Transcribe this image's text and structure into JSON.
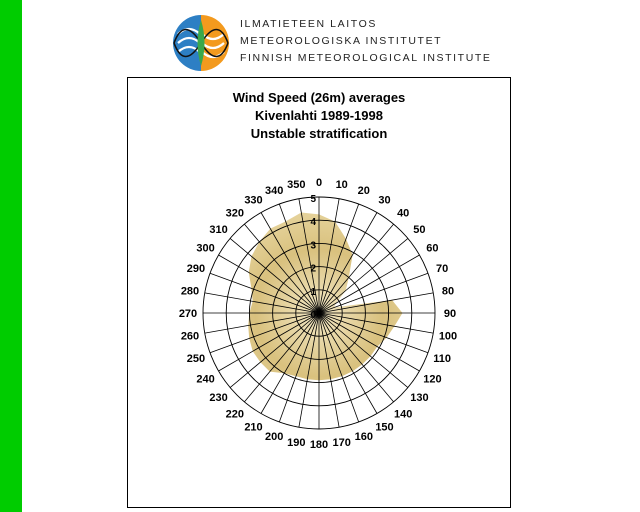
{
  "logo": {
    "line1": "ILMATIETEEN LAITOS",
    "line2": "METEOROLOGISKA INSTITUTET",
    "line3": "FINNISH METEOROLOGICAL INSTITUTE"
  },
  "colors": {
    "side_bar": "#00cc00",
    "fill": "#d9c17e",
    "grid": "#000000"
  },
  "chart_data": {
    "type": "radar",
    "title": [
      "Wind Speed (26m) averages",
      "Kivenlahti 1989-1998",
      "Unstable stratification"
    ],
    "direction_labels": [
      "0",
      "10",
      "20",
      "30",
      "40",
      "50",
      "60",
      "70",
      "80",
      "90",
      "100",
      "110",
      "120",
      "130",
      "140",
      "150",
      "160",
      "170",
      "180",
      "190",
      "200",
      "210",
      "220",
      "230",
      "240",
      "250",
      "260",
      "270",
      "280",
      "290",
      "300",
      "310",
      "320",
      "330",
      "340",
      "350"
    ],
    "radial_ticks": [
      0,
      1,
      2,
      3,
      4,
      5
    ],
    "rmax": 5,
    "values": [
      4.25,
      4.0,
      3.4,
      2.9,
      2.0,
      1.5,
      0.85,
      0.7,
      3.2,
      3.6,
      3.3,
      3.1,
      2.9,
      2.9,
      2.9,
      2.9,
      2.9,
      2.9,
      2.9,
      2.9,
      2.9,
      3.0,
      3.3,
      3.3,
      3.3,
      3.2,
      3.1,
      3.0,
      2.9,
      3.1,
      3.5,
      3.8,
      4.0,
      4.2,
      4.2,
      4.4
    ]
  }
}
